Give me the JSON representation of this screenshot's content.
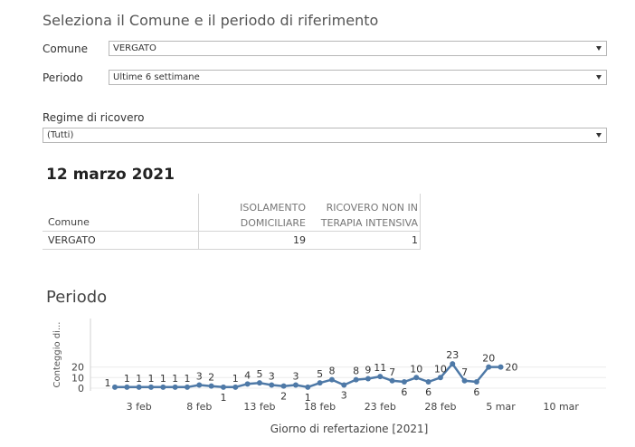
{
  "header": {
    "title": "Seleziona il Comune e il periodo di riferimento"
  },
  "filters": {
    "comune": {
      "label": "Comune",
      "value": "VERGATO"
    },
    "periodo": {
      "label": "Periodo",
      "value": "Ultime 6 settimane"
    },
    "regime": {
      "label": "Regime di ricovero",
      "value": "(Tutti)"
    }
  },
  "summary": {
    "date": "12 marzo 2021",
    "row_header": "Comune",
    "col1": [
      "ISOLAMENTO",
      "DOMICILIARE"
    ],
    "col2": [
      "RICOVERO NON IN",
      "TERAPIA INTENSIVA"
    ],
    "row": {
      "comune": "VERGATO",
      "isolamento": "19",
      "ricovero": "1"
    }
  },
  "period_section": {
    "title": "Periodo"
  },
  "chart_data": {
    "type": "line",
    "ylabel": "Conteggio di...",
    "xlabel": "Giorno di refertazione [2021]",
    "color": "#4e79a7",
    "y_ticks": [
      "0",
      "10",
      "20"
    ],
    "x_ticks": [
      "3 feb",
      "8 feb",
      "13 feb",
      "18 feb",
      "23 feb",
      "28 feb",
      "5 mar",
      "10 mar"
    ],
    "series": [
      {
        "values": [
          1,
          1,
          1,
          1,
          1,
          1,
          1,
          3,
          2,
          1,
          1,
          4,
          5,
          3,
          2,
          3,
          1,
          5,
          8,
          3,
          8,
          9,
          11,
          7,
          6,
          10,
          6,
          10,
          23,
          7,
          6,
          20,
          20
        ],
        "labels": [
          "1",
          "1",
          "1",
          "1",
          "1",
          "1",
          "1",
          "3",
          "2",
          "1",
          "1",
          "4",
          "5",
          "3",
          "2",
          "3",
          "1",
          "5",
          "8",
          "3",
          "8",
          "9",
          "11",
          "7",
          "6",
          "10",
          "6",
          "10",
          "23",
          "7",
          "6",
          "20",
          "20"
        ]
      }
    ]
  }
}
